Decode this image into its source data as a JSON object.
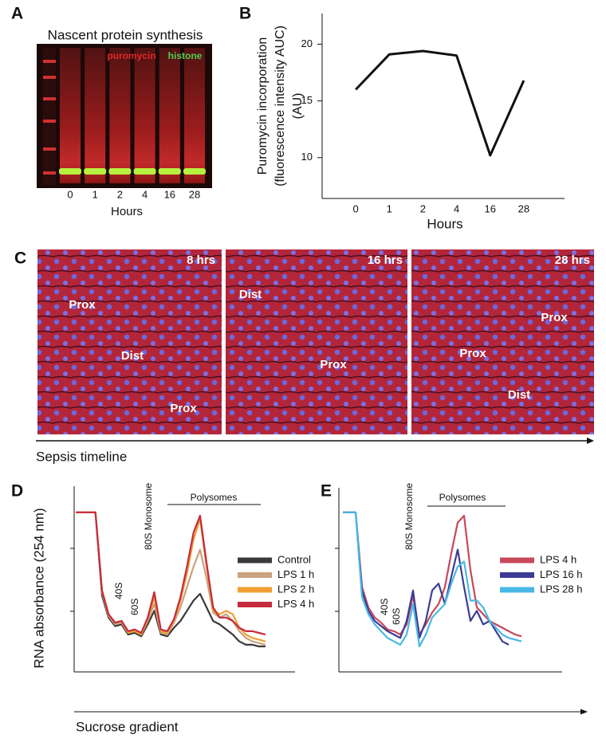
{
  "panel_labels": [
    "A",
    "B",
    "C",
    "D",
    "E"
  ],
  "panel_a": {
    "title": "Nascent protein synthesis",
    "channels": [
      "puromycin",
      "histone"
    ],
    "lanes": [
      "0",
      "1",
      "2",
      "4",
      "16",
      "28"
    ],
    "x_label": "Hours"
  },
  "panel_c": {
    "images": [
      {
        "time": "8 hrs",
        "regions": [
          "Prox",
          "Dist",
          "Prox"
        ]
      },
      {
        "time": "16 hrs",
        "regions": [
          "Dist",
          "Prox"
        ]
      },
      {
        "time": "28 hrs",
        "regions": [
          "Prox",
          "Prox",
          "Dist"
        ]
      }
    ],
    "timeline": "Sepsis timeline"
  },
  "chart_data": [
    {
      "type": "line",
      "y_label": [
        "Puromycin incorporation",
        "(fluorescence intensity AUC)",
        "(AU)"
      ],
      "x_label": "Hours",
      "categories": [
        "0",
        "1",
        "2",
        "4",
        "16",
        "28"
      ],
      "values": [
        16.0,
        19.1,
        19.4,
        19.0,
        10.2,
        16.8
      ],
      "color": "#111111",
      "ylim": [
        6.4,
        22.7
      ],
      "yticks": [
        10,
        15,
        20
      ]
    },
    {
      "type": "line",
      "y_label": "RNA absorbance (254 nm)",
      "x_label": "Sucrose gradient",
      "annotations": [
        "40S",
        "60S",
        "80S Monosome",
        "Polysomes"
      ],
      "ylim": [
        0,
        100
      ],
      "categories": [
        null,
        null,
        null,
        null,
        null,
        null,
        null,
        null,
        null,
        null,
        null,
        null,
        null,
        null,
        null,
        null,
        null,
        null,
        null,
        null,
        null,
        null,
        null,
        null,
        null,
        null,
        null,
        null,
        null,
        null
      ],
      "series": [
        {
          "name": "Control",
          "color": "#3a3a3a",
          "values": [
            94,
            94,
            94,
            94,
            45,
            32,
            27,
            28,
            22,
            23,
            21,
            28,
            36,
            22,
            21,
            26,
            30,
            36,
            42,
            46,
            38,
            30,
            28,
            25,
            22,
            18,
            16,
            16,
            15,
            15
          ]
        },
        {
          "name": "LPS 1 h",
          "color": "#c9a27e",
          "values": [
            94,
            94,
            94,
            94,
            47,
            33,
            28,
            29,
            23,
            24,
            22,
            30,
            40,
            23,
            22,
            29,
            38,
            50,
            62,
            72,
            55,
            35,
            32,
            34,
            30,
            24,
            20,
            18,
            17,
            16
          ]
        },
        {
          "name": "LPS 2 h",
          "color": "#f0a032",
          "values": [
            94,
            94,
            94,
            94,
            48,
            34,
            29,
            30,
            23,
            24,
            22,
            31,
            44,
            24,
            23,
            30,
            42,
            58,
            78,
            90,
            62,
            36,
            34,
            36,
            34,
            26,
            22,
            20,
            19,
            18
          ]
        },
        {
          "name": "LPS 4 h",
          "color": "#c52a3e",
          "values": [
            94,
            94,
            94,
            94,
            48,
            34,
            29,
            30,
            24,
            25,
            23,
            32,
            47,
            25,
            24,
            31,
            44,
            62,
            82,
            92,
            64,
            38,
            32,
            32,
            30,
            26,
            24,
            24,
            23,
            22
          ]
        }
      ]
    },
    {
      "type": "line",
      "annotations": [
        "40S",
        "60S",
        "80S Monosome",
        "Polysomes"
      ],
      "ylim": [
        0,
        100
      ],
      "categories": [
        null,
        null,
        null,
        null,
        null,
        null,
        null,
        null,
        null,
        null,
        null,
        null,
        null,
        null,
        null,
        null,
        null,
        null,
        null,
        null,
        null,
        null,
        null,
        null,
        null,
        null,
        null,
        null,
        null,
        null
      ],
      "series": [
        {
          "name": "LPS 4 h",
          "color": "#c8485a",
          "values": [
            94,
            94,
            94,
            50,
            38,
            32,
            29,
            25,
            24,
            22,
            28,
            45,
            22,
            28,
            35,
            40,
            50,
            70,
            88,
            92,
            60,
            38,
            34,
            30,
            28,
            26,
            24,
            22,
            21,
            null
          ]
        },
        {
          "name": "LPS 16 h",
          "color": "#3c3c96",
          "values": [
            94,
            94,
            94,
            48,
            36,
            30,
            27,
            24,
            22,
            20,
            30,
            48,
            20,
            30,
            48,
            52,
            40,
            56,
            72,
            50,
            30,
            36,
            28,
            30,
            24,
            18,
            16,
            null,
            null,
            null
          ]
        },
        {
          "name": "LPS 28 h",
          "color": "#4ab8e6",
          "values": [
            94,
            94,
            94,
            44,
            34,
            28,
            24,
            20,
            18,
            16,
            22,
            40,
            15,
            22,
            32,
            36,
            40,
            52,
            62,
            65,
            42,
            42,
            38,
            30,
            26,
            22,
            20,
            19,
            18,
            null
          ]
        }
      ]
    }
  ]
}
